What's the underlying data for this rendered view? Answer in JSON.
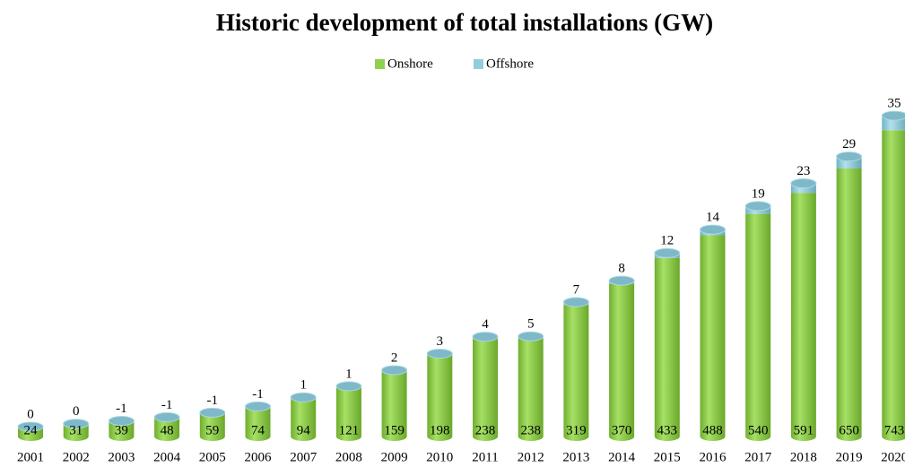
{
  "chart_data": {
    "type": "bar",
    "stacked": true,
    "title": "Historic development of total installations (GW)",
    "categories": [
      "2001",
      "2002",
      "2003",
      "2004",
      "2005",
      "2006",
      "2007",
      "2008",
      "2009",
      "2010",
      "2011",
      "2012",
      "2013",
      "2014",
      "2015",
      "2016",
      "2017",
      "2018",
      "2019",
      "2020"
    ],
    "series": [
      {
        "name": "Onshore",
        "color": "#8fd14f",
        "values": [
          24,
          31,
          39,
          48,
          59,
          74,
          94,
          121,
          159,
          198,
          238,
          238,
          319,
          370,
          433,
          488,
          540,
          591,
          650,
          743
        ]
      },
      {
        "name": "Offshore",
        "color": "#92cddc",
        "values": [
          0,
          0,
          -1,
          -1,
          -1,
          -1,
          1,
          1,
          2,
          3,
          4,
          5,
          7,
          8,
          12,
          14,
          19,
          23,
          29,
          35
        ]
      }
    ]
  }
}
